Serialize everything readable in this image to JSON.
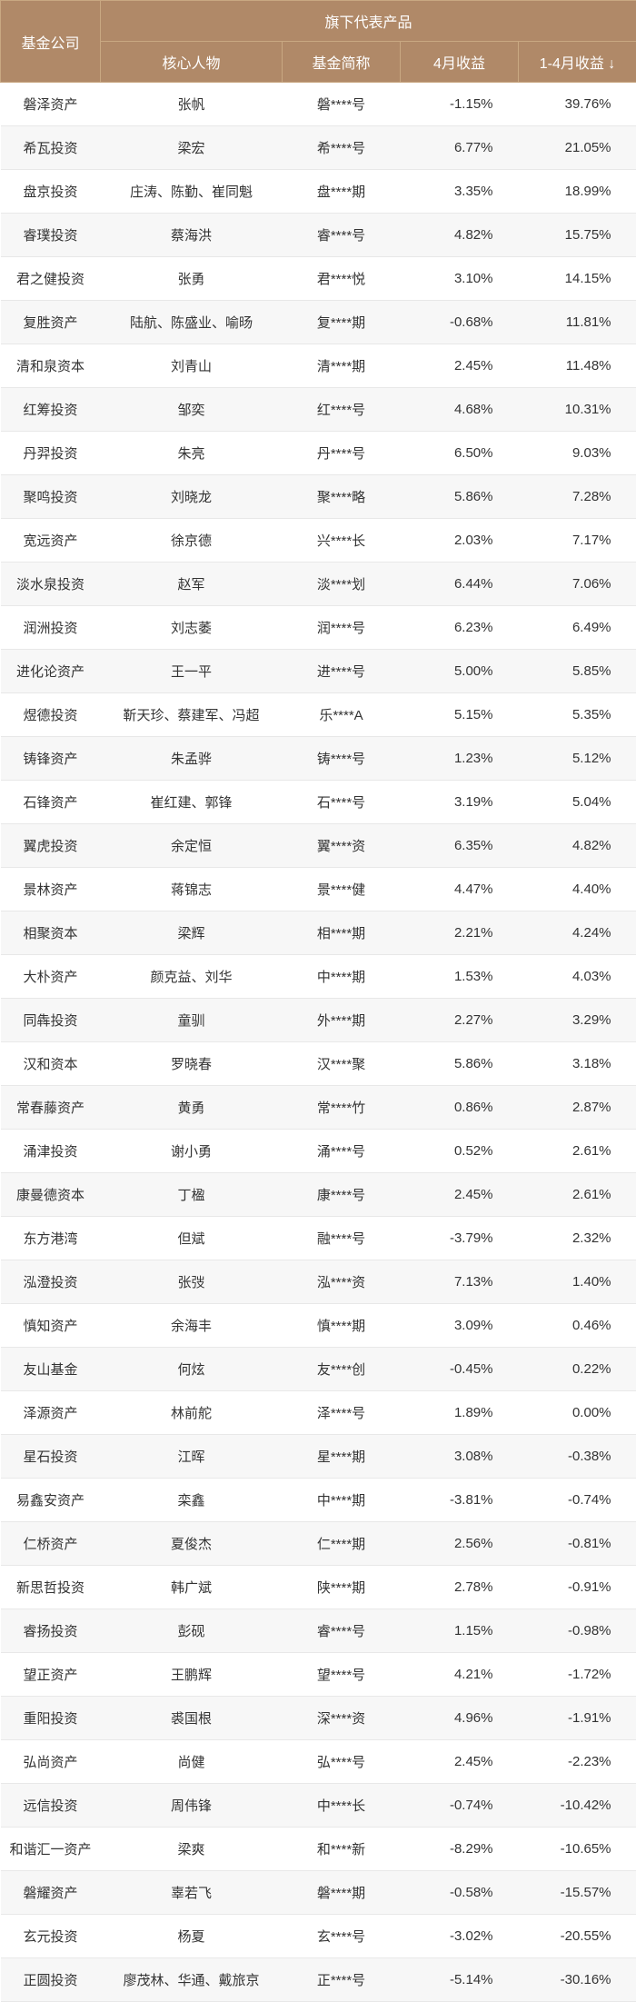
{
  "header": {
    "company": "基金公司",
    "group": "旗下代表产品",
    "person": "核心人物",
    "fund": "基金简称",
    "apr": "4月收益",
    "ytd": "1-4月收益 ↓"
  },
  "rows": [
    {
      "company": "磐泽资产",
      "person": "张帆",
      "fund": "磐****号",
      "apr": "-1.15%",
      "ytd": "39.76%"
    },
    {
      "company": "希瓦投资",
      "person": "梁宏",
      "fund": "希****号",
      "apr": "6.77%",
      "ytd": "21.05%"
    },
    {
      "company": "盘京投资",
      "person": "庄涛、陈勤、崔同魁",
      "fund": "盘****期",
      "apr": "3.35%",
      "ytd": "18.99%"
    },
    {
      "company": "睿璞投资",
      "person": "蔡海洪",
      "fund": "睿****号",
      "apr": "4.82%",
      "ytd": "15.75%"
    },
    {
      "company": "君之健投资",
      "person": "张勇",
      "fund": "君****悦",
      "apr": "3.10%",
      "ytd": "14.15%"
    },
    {
      "company": "复胜资产",
      "person": "陆航、陈盛业、喻旸",
      "fund": "复****期",
      "apr": "-0.68%",
      "ytd": "11.81%"
    },
    {
      "company": "清和泉资本",
      "person": "刘青山",
      "fund": "清****期",
      "apr": "2.45%",
      "ytd": "11.48%"
    },
    {
      "company": "红筹投资",
      "person": "邹奕",
      "fund": "红****号",
      "apr": "4.68%",
      "ytd": "10.31%"
    },
    {
      "company": "丹羿投资",
      "person": "朱亮",
      "fund": "丹****号",
      "apr": "6.50%",
      "ytd": "9.03%"
    },
    {
      "company": "聚鸣投资",
      "person": "刘晓龙",
      "fund": "聚****略",
      "apr": "5.86%",
      "ytd": "7.28%"
    },
    {
      "company": "宽远资产",
      "person": "徐京德",
      "fund": "兴****长",
      "apr": "2.03%",
      "ytd": "7.17%"
    },
    {
      "company": "淡水泉投资",
      "person": "赵军",
      "fund": "淡****划",
      "apr": "6.44%",
      "ytd": "7.06%"
    },
    {
      "company": "润洲投资",
      "person": "刘志萎",
      "fund": "润****号",
      "apr": "6.23%",
      "ytd": "6.49%"
    },
    {
      "company": "进化论资产",
      "person": "王一平",
      "fund": "进****号",
      "apr": "5.00%",
      "ytd": "5.85%"
    },
    {
      "company": "煜德投资",
      "person": "靳天珍、蔡建军、冯超",
      "fund": "乐****A",
      "apr": "5.15%",
      "ytd": "5.35%"
    },
    {
      "company": "铸锋资产",
      "person": "朱孟骅",
      "fund": "铸****号",
      "apr": "1.23%",
      "ytd": "5.12%"
    },
    {
      "company": "石锋资产",
      "person": "崔红建、郭锋",
      "fund": "石****号",
      "apr": "3.19%",
      "ytd": "5.04%"
    },
    {
      "company": "翼虎投资",
      "person": "余定恒",
      "fund": "翼****资",
      "apr": "6.35%",
      "ytd": "4.82%"
    },
    {
      "company": "景林资产",
      "person": "蒋锦志",
      "fund": "景****健",
      "apr": "4.47%",
      "ytd": "4.40%"
    },
    {
      "company": "相聚资本",
      "person": "梁辉",
      "fund": "相****期",
      "apr": "2.21%",
      "ytd": "4.24%"
    },
    {
      "company": "大朴资产",
      "person": "颜克益、刘华",
      "fund": "中****期",
      "apr": "1.53%",
      "ytd": "4.03%"
    },
    {
      "company": "同犇投资",
      "person": "童驯",
      "fund": "外****期",
      "apr": "2.27%",
      "ytd": "3.29%"
    },
    {
      "company": "汉和资本",
      "person": "罗晓春",
      "fund": "汉****聚",
      "apr": "5.86%",
      "ytd": "3.18%"
    },
    {
      "company": "常春藤资产",
      "person": "黄勇",
      "fund": "常****竹",
      "apr": "0.86%",
      "ytd": "2.87%"
    },
    {
      "company": "涌津投资",
      "person": "谢小勇",
      "fund": "涌****号",
      "apr": "0.52%",
      "ytd": "2.61%"
    },
    {
      "company": "康曼德资本",
      "person": "丁楹",
      "fund": "康****号",
      "apr": "2.45%",
      "ytd": "2.61%"
    },
    {
      "company": "东方港湾",
      "person": "但斌",
      "fund": "融****号",
      "apr": "-3.79%",
      "ytd": "2.32%"
    },
    {
      "company": "泓澄投资",
      "person": "张弢",
      "fund": "泓****资",
      "apr": "7.13%",
      "ytd": "1.40%"
    },
    {
      "company": "慎知资产",
      "person": "余海丰",
      "fund": "慎****期",
      "apr": "3.09%",
      "ytd": "0.46%"
    },
    {
      "company": "友山基金",
      "person": "何炫",
      "fund": "友****创",
      "apr": "-0.45%",
      "ytd": "0.22%"
    },
    {
      "company": "泽源资产",
      "person": "林前舵",
      "fund": "泽****号",
      "apr": "1.89%",
      "ytd": "0.00%"
    },
    {
      "company": "星石投资",
      "person": "江晖",
      "fund": "星****期",
      "apr": "3.08%",
      "ytd": "-0.38%"
    },
    {
      "company": "易鑫安资产",
      "person": "栾鑫",
      "fund": "中****期",
      "apr": "-3.81%",
      "ytd": "-0.74%"
    },
    {
      "company": "仁桥资产",
      "person": "夏俊杰",
      "fund": "仁****期",
      "apr": "2.56%",
      "ytd": "-0.81%"
    },
    {
      "company": "新思哲投资",
      "person": "韩广斌",
      "fund": "陕****期",
      "apr": "2.78%",
      "ytd": "-0.91%"
    },
    {
      "company": "睿扬投资",
      "person": "彭砚",
      "fund": "睿****号",
      "apr": "1.15%",
      "ytd": "-0.98%"
    },
    {
      "company": "望正资产",
      "person": "王鹏辉",
      "fund": "望****号",
      "apr": "4.21%",
      "ytd": "-1.72%"
    },
    {
      "company": "重阳投资",
      "person": "裘国根",
      "fund": "深****资",
      "apr": "4.96%",
      "ytd": "-1.91%"
    },
    {
      "company": "弘尚资产",
      "person": "尚健",
      "fund": "弘****号",
      "apr": "2.45%",
      "ytd": "-2.23%"
    },
    {
      "company": "远信投资",
      "person": "周伟锋",
      "fund": "中****长",
      "apr": "-0.74%",
      "ytd": "-10.42%"
    },
    {
      "company": "和谐汇一资产",
      "person": "梁爽",
      "fund": "和****新",
      "apr": "-8.29%",
      "ytd": "-10.65%"
    },
    {
      "company": "磐耀资产",
      "person": "辜若飞",
      "fund": "磐****期",
      "apr": "-0.58%",
      "ytd": "-15.57%"
    },
    {
      "company": "玄元投资",
      "person": "杨夏",
      "fund": "玄****号",
      "apr": "-3.02%",
      "ytd": "-20.55%"
    },
    {
      "company": "正圆投资",
      "person": "廖茂林、华通、戴旅京",
      "fund": "正****号",
      "apr": "-5.14%",
      "ytd": "-30.16%"
    }
  ]
}
